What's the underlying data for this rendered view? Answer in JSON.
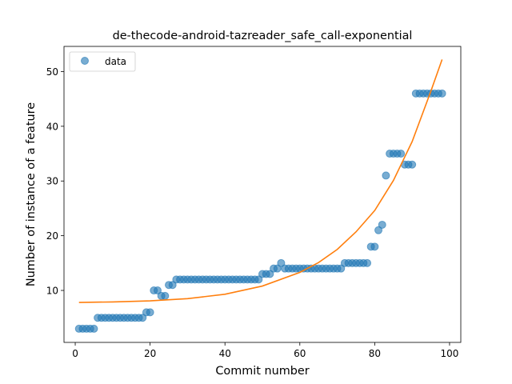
{
  "chart_data": {
    "type": "scatter",
    "title": "de-thecode-android-tazreader_safe_call-exponential",
    "xlabel": "Commit number",
    "ylabel": "Number of instance of a feature",
    "xlim": [
      -3,
      103
    ],
    "ylim": [
      0.5,
      54.6
    ],
    "xticks": [
      0,
      20,
      40,
      60,
      80,
      100
    ],
    "yticks": [
      10,
      20,
      30,
      40,
      50
    ],
    "grid": false,
    "legend_position": "top-left",
    "colors": {
      "data": "#1f77b4",
      "fit": "#ff7f0e"
    },
    "series": [
      {
        "name": "data",
        "kind": "points",
        "x": [
          1,
          2,
          3,
          4,
          5,
          6,
          7,
          8,
          9,
          10,
          11,
          12,
          13,
          14,
          15,
          16,
          17,
          18,
          19,
          20,
          21,
          22,
          23,
          24,
          25,
          26,
          27,
          28,
          29,
          30,
          31,
          32,
          33,
          34,
          35,
          36,
          37,
          38,
          39,
          40,
          41,
          42,
          43,
          44,
          45,
          46,
          47,
          48,
          49,
          50,
          51,
          52,
          53,
          54,
          55,
          56,
          57,
          58,
          59,
          60,
          61,
          62,
          63,
          64,
          65,
          66,
          67,
          68,
          69,
          70,
          71,
          72,
          73,
          74,
          75,
          76,
          77,
          78,
          79,
          80,
          81,
          82,
          83,
          84,
          85,
          86,
          87,
          88,
          89,
          90,
          91,
          92,
          93,
          94,
          95,
          96,
          97,
          98
        ],
        "y": [
          3,
          3,
          3,
          3,
          3,
          5,
          5,
          5,
          5,
          5,
          5,
          5,
          5,
          5,
          5,
          5,
          5,
          5,
          6,
          6,
          10,
          10,
          9,
          9,
          11,
          11,
          12,
          12,
          12,
          12,
          12,
          12,
          12,
          12,
          12,
          12,
          12,
          12,
          12,
          12,
          12,
          12,
          12,
          12,
          12,
          12,
          12,
          12,
          12,
          13,
          13,
          13,
          14,
          14,
          15,
          14,
          14,
          14,
          14,
          14,
          14,
          14,
          14,
          14,
          14,
          14,
          14,
          14,
          14,
          14,
          14,
          15,
          15,
          15,
          15,
          15,
          15,
          15,
          18,
          18,
          21,
          22,
          31,
          35,
          35,
          35,
          35,
          33,
          33,
          33,
          46,
          46,
          46,
          46,
          46,
          46,
          46,
          46
        ]
      },
      {
        "name": "",
        "kind": "line",
        "x": [
          1,
          10,
          20,
          30,
          40,
          50,
          60,
          65,
          70,
          75,
          80,
          85,
          90,
          95,
          98
        ],
        "y": [
          7.8,
          7.9,
          8.1,
          8.5,
          9.3,
          10.8,
          13.3,
          15.1,
          17.5,
          20.7,
          24.6,
          30.1,
          37.2,
          46.4,
          52.2
        ]
      }
    ]
  }
}
